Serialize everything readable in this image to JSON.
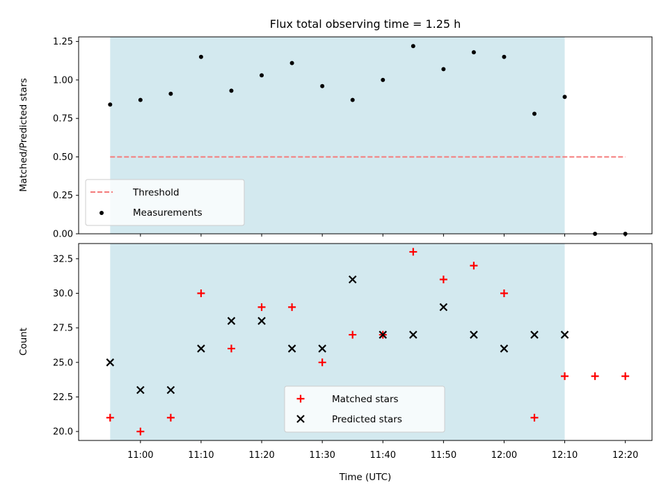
{
  "chart_data": [
    {
      "type": "scatter",
      "title": "Flux total observing time = 1.25 h",
      "xlabel": "",
      "ylabel": "Matched/Predicted stars",
      "ylim": [
        0.0,
        1.28
      ],
      "yticks": [
        "0.00",
        "0.25",
        "0.50",
        "0.75",
        "1.00",
        "1.25"
      ],
      "shaded_span": {
        "x_start": "10:55",
        "x_end": "12:10",
        "color": "#d3e9ef"
      },
      "threshold": {
        "name": "Threshold",
        "y": 0.5,
        "x_start": "10:55",
        "x_end": "12:20",
        "color": "#f47a7a"
      },
      "series": [
        {
          "name": "Measurements",
          "color": "#000000",
          "marker": "dot",
          "x": [
            "10:55",
            "11:00",
            "11:05",
            "11:10",
            "11:15",
            "11:20",
            "11:25",
            "11:30",
            "11:35",
            "11:40",
            "11:45",
            "11:50",
            "11:55",
            "12:00",
            "12:05",
            "12:10",
            "12:15",
            "12:20"
          ],
          "y": [
            0.84,
            0.87,
            0.91,
            1.15,
            0.93,
            1.03,
            1.11,
            0.96,
            0.87,
            1.0,
            1.22,
            1.07,
            1.18,
            1.15,
            0.78,
            0.89,
            0.0,
            0.0
          ]
        }
      ],
      "legend": [
        "Threshold",
        "Measurements"
      ],
      "legend_position": "lower-left"
    },
    {
      "type": "scatter",
      "title": "",
      "xlabel": "Time (UTC)",
      "ylabel": "Count",
      "ylim": [
        19.35,
        33.6
      ],
      "yticks": [
        "20.0",
        "22.5",
        "25.0",
        "27.5",
        "30.0",
        "32.5"
      ],
      "xticks": [
        "11:00",
        "11:10",
        "11:20",
        "11:30",
        "11:40",
        "11:50",
        "12:00",
        "12:10",
        "12:20"
      ],
      "shaded_span": {
        "x_start": "10:55",
        "x_end": "12:10",
        "color": "#d3e9ef"
      },
      "series": [
        {
          "name": "Matched stars",
          "color": "#ff0000",
          "marker": "plus",
          "x": [
            "10:55",
            "11:00",
            "11:05",
            "11:10",
            "11:15",
            "11:20",
            "11:25",
            "11:30",
            "11:35",
            "11:40",
            "11:45",
            "11:50",
            "11:55",
            "12:00",
            "12:05",
            "12:10",
            "12:15",
            "12:20"
          ],
          "y": [
            21,
            20,
            21,
            30,
            26,
            29,
            29,
            25,
            27,
            27,
            33,
            31,
            32,
            30,
            21,
            24,
            24,
            24
          ]
        },
        {
          "name": "Predicted stars",
          "color": "#000000",
          "marker": "x",
          "x": [
            "10:55",
            "11:00",
            "11:05",
            "11:10",
            "11:15",
            "11:20",
            "11:25",
            "11:30",
            "11:35",
            "11:40",
            "11:45",
            "11:50",
            "11:55",
            "12:00",
            "12:05",
            "12:10"
          ],
          "y": [
            25,
            23,
            23,
            26,
            28,
            28,
            26,
            26,
            31,
            27,
            27,
            29,
            27,
            26,
            27,
            27
          ]
        }
      ],
      "legend": [
        "Matched stars",
        "Predicted stars"
      ],
      "legend_position": "lower-center"
    }
  ]
}
